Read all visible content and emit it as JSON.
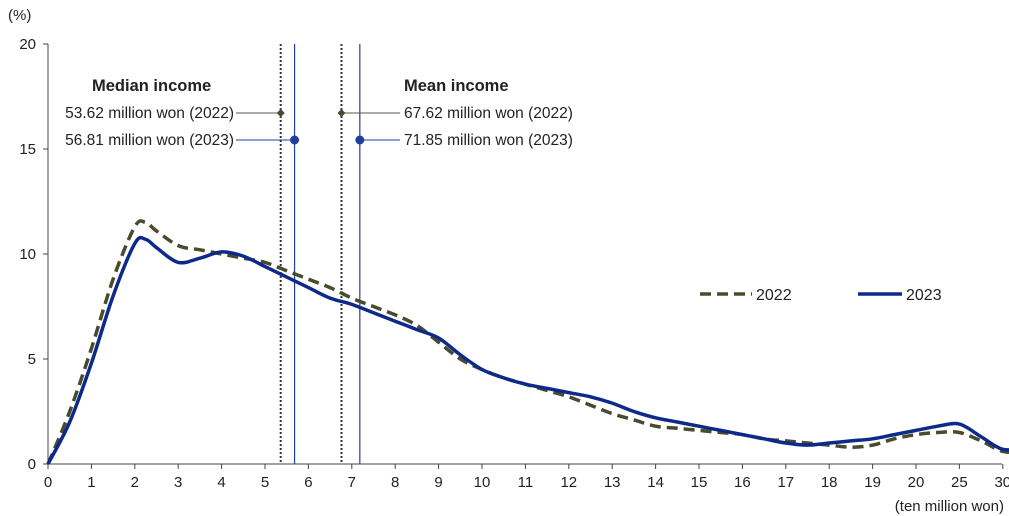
{
  "chart_data": {
    "type": "line",
    "y_unit_label": "(%)",
    "x_unit_label": "(ten million won)",
    "ylim": [
      0,
      20
    ],
    "y_ticks": [
      0,
      5,
      10,
      15,
      20
    ],
    "x_ticks": [
      "0",
      "1",
      "2",
      "3",
      "4",
      "5",
      "6",
      "7",
      "8",
      "9",
      "10",
      "11",
      "12",
      "13",
      "14",
      "15",
      "16",
      "17",
      "18",
      "19",
      "20",
      "25",
      "30"
    ],
    "grid": false,
    "legend_position": "right",
    "x": [
      0,
      0.5,
      1,
      1.5,
      2,
      2.25,
      2.5,
      3,
      3.5,
      4,
      4.5,
      5,
      5.5,
      6,
      6.5,
      7,
      7.5,
      8,
      8.5,
      9,
      9.5,
      10,
      10.5,
      11,
      11.5,
      12,
      12.5,
      13,
      13.5,
      14,
      14.5,
      15,
      15.5,
      16,
      16.5,
      17,
      17.5,
      18,
      18.5,
      19,
      19.5,
      20,
      20.5,
      21,
      21.5,
      22,
      22.5,
      23
    ],
    "series": [
      {
        "name": "2022",
        "color": "#4a4a2e",
        "dash": true,
        "values": [
          0,
          2.5,
          5.5,
          8.8,
          11.3,
          11.5,
          11.1,
          10.4,
          10.2,
          10.0,
          9.8,
          9.6,
          9.2,
          8.8,
          8.4,
          7.9,
          7.5,
          7.1,
          6.6,
          5.8,
          5.0,
          4.5,
          4.1,
          3.8,
          3.5,
          3.2,
          2.8,
          2.4,
          2.1,
          1.8,
          1.7,
          1.6,
          1.5,
          1.4,
          1.2,
          1.1,
          1.0,
          0.9,
          0.8,
          0.9,
          1.2,
          1.4,
          1.5,
          1.5,
          1.1,
          0.6,
          0.6,
          0.8
        ]
      },
      {
        "name": "2023",
        "color": "#0d2a8a",
        "dash": false,
        "values": [
          0,
          2.0,
          4.8,
          8.0,
          10.5,
          10.7,
          10.3,
          9.6,
          9.8,
          10.1,
          9.9,
          9.4,
          8.9,
          8.4,
          7.9,
          7.6,
          7.2,
          6.8,
          6.4,
          6.0,
          5.2,
          4.5,
          4.1,
          3.8,
          3.6,
          3.4,
          3.2,
          2.9,
          2.5,
          2.2,
          2.0,
          1.8,
          1.6,
          1.4,
          1.2,
          1.0,
          0.9,
          1.0,
          1.1,
          1.2,
          1.4,
          1.6,
          1.8,
          1.9,
          1.3,
          0.7,
          0.8,
          1.0
        ]
      }
    ],
    "reference_lines": [
      {
        "x": 5.362,
        "series": "2022",
        "group": "median",
        "label": "53.62 million won (2022)"
      },
      {
        "x": 5.681,
        "series": "2023",
        "group": "median",
        "label": "56.81 million won (2023)"
      },
      {
        "x": 6.762,
        "series": "2022",
        "group": "mean",
        "label": "67.62 million won (2022)"
      },
      {
        "x": 7.185,
        "series": "2023",
        "group": "mean",
        "label": "71.85 million won (2023)"
      }
    ],
    "annotation_titles": {
      "median": "Median income",
      "mean": "Mean income"
    }
  }
}
